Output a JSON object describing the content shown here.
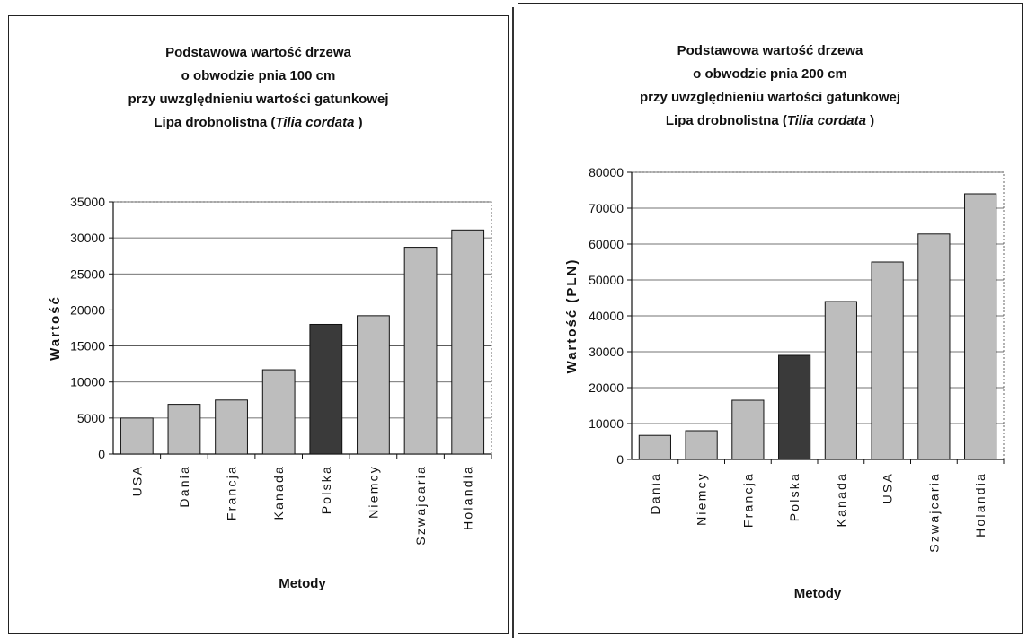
{
  "colors": {
    "bar_default": "#bdbdbd",
    "bar_highlight": "#3a3a3a",
    "gridline": "#444444"
  },
  "chart_data": [
    {
      "type": "bar",
      "title_lines": [
        "Podstawowa wartość drzewa",
        "o obwodzie pnia 100 cm",
        "przy uwzględnieniu wartości gatunkowej",
        "Lipa drobnolistna (",
        "Tilia cordata",
        " )"
      ],
      "categories": [
        "USA",
        "Dania",
        "Francja",
        "Kanada",
        "Polska",
        "Niemcy",
        "Szwajcaria",
        "Holandia"
      ],
      "values": [
        5000,
        6900,
        7500,
        11700,
        18000,
        19200,
        28700,
        31100
      ],
      "highlight_category": "Polska",
      "xlabel": "Metody",
      "ylabel": "Wartość",
      "ylim": [
        0,
        35000
      ],
      "yticks": [
        0,
        5000,
        10000,
        15000,
        20000,
        25000,
        30000,
        35000
      ],
      "grid": true,
      "legend": "none"
    },
    {
      "type": "bar",
      "title_lines": [
        "Podstawowa wartość drzewa",
        "o obwodzie pnia 200 cm",
        "przy uwzględnieniu wartości gatunkowej",
        "Lipa drobnolistna (",
        "Tilia cordata",
        " )"
      ],
      "categories": [
        "Dania",
        "Niemcy",
        "Francja",
        "Polska",
        "Kanada",
        "USA",
        "Szwajcaria",
        "Holandia"
      ],
      "values": [
        6700,
        8000,
        16500,
        29000,
        44000,
        55000,
        62800,
        74000
      ],
      "highlight_category": "Polska",
      "xlabel": "Metody",
      "ylabel": "Wartość (PLN)",
      "ylim": [
        0,
        80000
      ],
      "yticks": [
        0,
        10000,
        20000,
        30000,
        40000,
        50000,
        60000,
        70000,
        80000
      ],
      "grid": true,
      "legend": "none"
    }
  ]
}
